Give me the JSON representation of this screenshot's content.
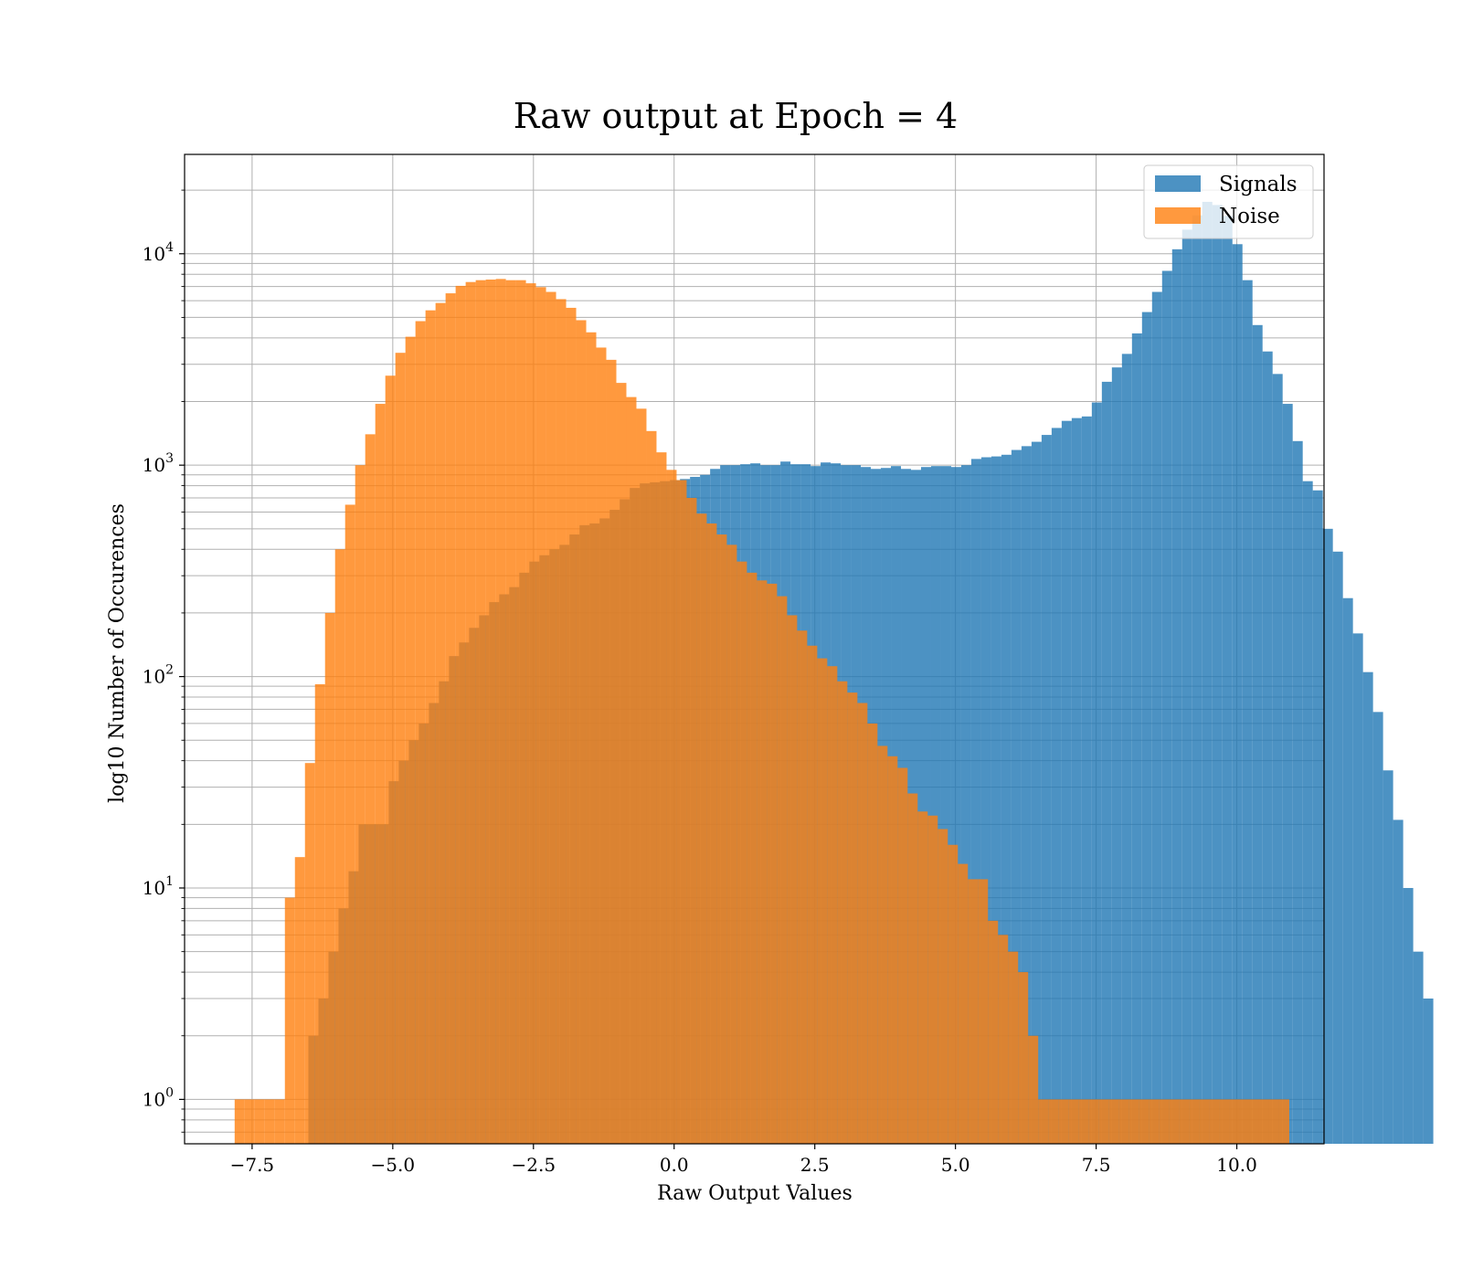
{
  "chart_data": {
    "type": "histogram",
    "title": "Raw output at Epoch = 4",
    "xlabel": "Raw Output Values",
    "ylabel": "log10 Number of Occurences",
    "xlim": [
      -8.7,
      11.55
    ],
    "ylim_log10": [
      -0.21,
      4.47
    ],
    "yscale": "log",
    "grid": true,
    "legend_position": "top-right",
    "x_ticks": [
      -7.5,
      -5.0,
      -2.5,
      0.0,
      2.5,
      5.0,
      7.5,
      10.0
    ],
    "x_tick_labels": [
      "−7.5",
      "−5.0",
      "−2.5",
      "0.0",
      "2.5",
      "5.0",
      "7.5",
      "10.0"
    ],
    "y_ticks": [
      {
        "value": 1,
        "base": "10",
        "exp": "0"
      },
      {
        "value": 10,
        "base": "10",
        "exp": "1"
      },
      {
        "value": 100,
        "base": "10",
        "exp": "2"
      },
      {
        "value": 1000,
        "base": "10",
        "exp": "3"
      },
      {
        "value": 10000,
        "base": "10",
        "exp": "4"
      }
    ],
    "series": [
      {
        "name": "Signals",
        "color": "#1f77b4",
        "opacity": 0.8,
        "bin_start": -6.5,
        "bin_width": 0.1785,
        "counts": [
          2,
          3,
          5,
          8,
          12,
          20,
          20,
          20,
          32,
          40,
          50,
          60,
          75,
          95,
          125,
          145,
          170,
          195,
          225,
          245,
          265,
          310,
          350,
          375,
          400,
          420,
          470,
          520,
          530,
          560,
          615,
          690,
          780,
          820,
          830,
          840,
          850,
          860,
          880,
          900,
          960,
          1000,
          1000,
          1010,
          1020,
          1000,
          1000,
          1040,
          1010,
          1010,
          990,
          1030,
          1020,
          1000,
          1000,
          980,
          960,
          970,
          990,
          960,
          950,
          980,
          990,
          990,
          980,
          1000,
          1070,
          1090,
          1100,
          1120,
          1180,
          1230,
          1290,
          1390,
          1500,
          1620,
          1670,
          1700,
          1980,
          2480,
          2900,
          3360,
          4200,
          5300,
          6600,
          8300,
          10500,
          13000,
          15200,
          17600,
          17000,
          15100,
          11100,
          7500,
          4600,
          3450,
          2700,
          1950,
          1300,
          840,
          760,
          500,
          390,
          235,
          160,
          105,
          68,
          36,
          21,
          10,
          5,
          3
        ]
      },
      {
        "name": "Noise",
        "color": "#ff7f0e",
        "opacity": 0.8,
        "bin_start": -7.81,
        "bin_width": 0.1785,
        "counts": [
          1,
          1,
          1,
          1,
          1,
          9,
          14,
          39,
          92,
          200,
          400,
          650,
          1000,
          1400,
          1950,
          2650,
          3400,
          4050,
          4800,
          5400,
          5850,
          6500,
          7050,
          7350,
          7500,
          7550,
          7600,
          7500,
          7500,
          7250,
          6950,
          6600,
          6100,
          5550,
          4850,
          4250,
          3600,
          3150,
          2450,
          2100,
          1850,
          1450,
          1150,
          950,
          850,
          700,
          590,
          530,
          470,
          420,
          350,
          310,
          285,
          275,
          240,
          195,
          165,
          140,
          122,
          112,
          95,
          84,
          75,
          60,
          47,
          42,
          37,
          28,
          23,
          22,
          19,
          16,
          13,
          11,
          11,
          7,
          6,
          5,
          4,
          2,
          1,
          1,
          1,
          1,
          1,
          1,
          1,
          1,
          1,
          1,
          1,
          1,
          1,
          1,
          1,
          1,
          1,
          1,
          1,
          1,
          1,
          1,
          1,
          1,
          1
        ]
      }
    ]
  },
  "legend": {
    "items": [
      {
        "label": "Signals",
        "color": "#1f77b4"
      },
      {
        "label": "Noise",
        "color": "#ff7f0e"
      }
    ]
  }
}
